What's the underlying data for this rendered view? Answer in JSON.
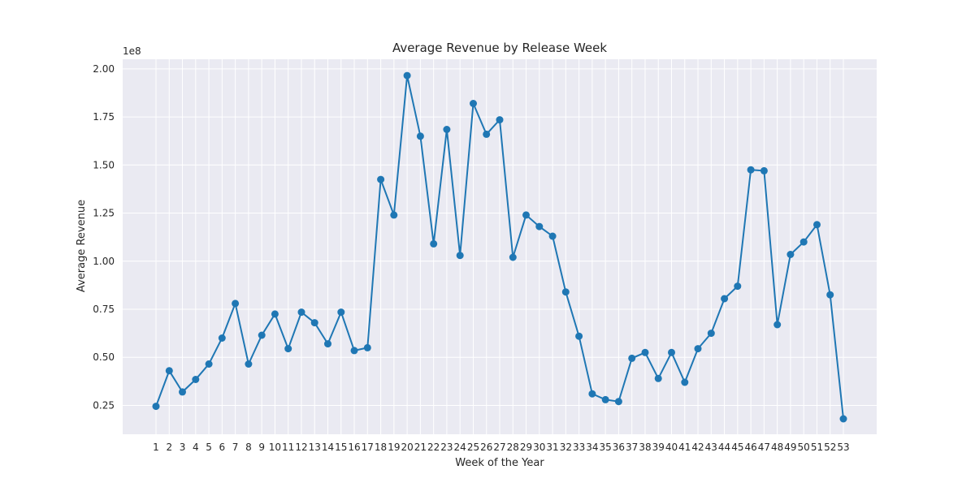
{
  "chart_data": {
    "type": "line",
    "title": "Average Revenue by Release Week",
    "xlabel": "Week of the Year",
    "ylabel": "Average Revenue",
    "y_offset_label": "1e8",
    "xlim": [
      1,
      53
    ],
    "ylim": [
      0.1,
      2.05
    ],
    "y_ticks": [
      "0.25",
      "0.50",
      "0.75",
      "1.00",
      "1.25",
      "1.50",
      "1.75",
      "2.00"
    ],
    "y_tick_values": [
      0.25,
      0.5,
      0.75,
      1.0,
      1.25,
      1.5,
      1.75,
      2.0
    ],
    "grid": true,
    "background": "#eaeaf2",
    "line_color": "#1f77b4",
    "x": [
      1,
      2,
      3,
      4,
      5,
      6,
      7,
      8,
      9,
      10,
      11,
      12,
      13,
      14,
      15,
      16,
      17,
      18,
      19,
      20,
      21,
      22,
      23,
      24,
      25,
      26,
      27,
      28,
      29,
      30,
      31,
      32,
      33,
      34,
      35,
      36,
      37,
      38,
      39,
      40,
      41,
      42,
      43,
      44,
      45,
      46,
      47,
      48,
      49,
      50,
      51,
      52,
      53
    ],
    "series": [
      {
        "values": [
          0.245,
          0.43,
          0.32,
          0.385,
          0.465,
          0.6,
          0.78,
          0.465,
          0.615,
          0.725,
          0.545,
          0.735,
          0.68,
          0.57,
          0.735,
          0.535,
          0.55,
          1.425,
          1.24,
          1.965,
          1.65,
          1.09,
          1.685,
          1.03,
          1.82,
          1.66,
          1.735,
          1.02,
          1.24,
          1.18,
          1.13,
          0.84,
          0.61,
          0.31,
          0.28,
          0.27,
          0.495,
          0.525,
          0.39,
          0.525,
          0.37,
          0.545,
          0.625,
          0.805,
          0.87,
          1.475,
          1.47,
          0.67,
          1.035,
          1.1,
          1.19,
          0.825,
          0.18
        ]
      }
    ]
  }
}
